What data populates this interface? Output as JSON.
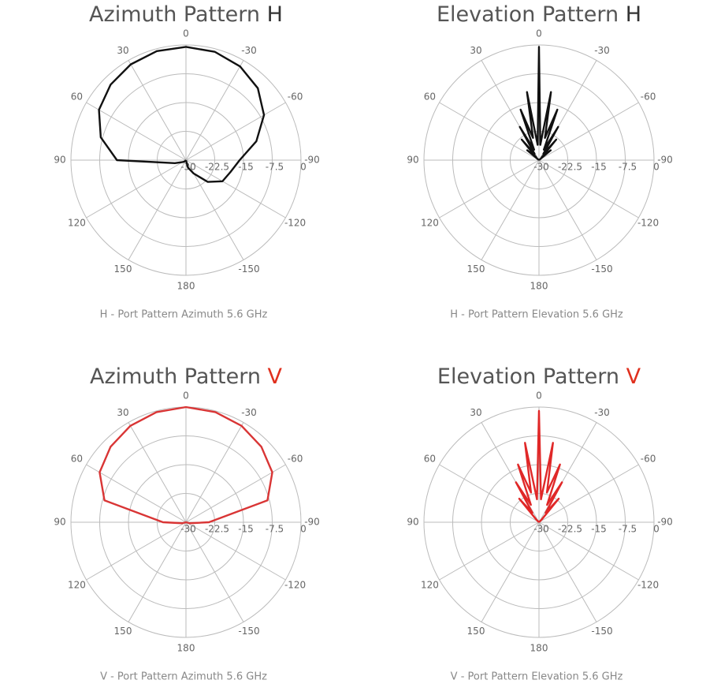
{
  "chart_data": [
    {
      "type": "polar",
      "title": "Azimuth Pattern",
      "title_highlight": "H",
      "highlight_color": "#333333",
      "caption": "H - Port Pattern Azimuth 5.6 GHz",
      "thetaticks": [
        0,
        -30,
        -60,
        -90,
        -120,
        -150,
        180,
        150,
        120,
        90,
        60,
        30
      ],
      "rlim": [
        -30,
        0
      ],
      "rticks": [
        -30,
        -22.5,
        -15,
        -7.5,
        0
      ],
      "color": "#111111",
      "x": [
        -180,
        -165,
        -150,
        -135,
        -120,
        -105,
        -90,
        -75,
        -60,
        -45,
        -30,
        -15,
        0,
        15,
        30,
        45,
        60,
        75,
        90,
        105,
        120,
        135,
        150,
        165,
        180
      ],
      "values": [
        -30,
        -28,
        -26,
        -22,
        -19,
        -18,
        -16,
        -11,
        -6.5,
        -3.5,
        -1.8,
        -0.8,
        -0.5,
        -0.6,
        -1.2,
        -2.2,
        -3.8,
        -7,
        -12,
        -27,
        -29,
        -29.5,
        -30,
        -30,
        -30
      ]
    },
    {
      "type": "polar",
      "title": "Elevation Pattern",
      "title_highlight": "H",
      "highlight_color": "#333333",
      "caption": "H - Port Pattern Elevation 5.6 GHz",
      "thetaticks": [
        0,
        -30,
        -60,
        -90,
        -120,
        -150,
        180,
        150,
        120,
        90,
        60,
        30
      ],
      "rlim": [
        -30,
        0
      ],
      "rticks": [
        -30,
        -22.5,
        -15,
        -7.5,
        0
      ],
      "color": "#111111",
      "x": [
        -90,
        -85,
        -80,
        -75,
        -70,
        -65,
        -60,
        -55,
        -50,
        -45,
        -40,
        -35,
        -30,
        -25,
        -20,
        -15,
        -10,
        -5,
        0,
        5,
        10,
        15,
        20,
        25,
        30,
        35,
        40,
        45,
        50,
        55,
        60,
        65,
        70,
        75,
        80,
        85,
        90
      ],
      "values": [
        -30,
        -30,
        -30,
        -30,
        -30,
        -30,
        -30,
        -30,
        -26,
        -29,
        -23,
        -28,
        -20,
        -27,
        -16,
        -24,
        -12,
        -26,
        -0.5,
        -26,
        -12,
        -24,
        -16,
        -27,
        -20,
        -28,
        -23,
        -29,
        -26,
        -30,
        -30,
        -30,
        -30,
        -30,
        -30,
        -30,
        -30
      ]
    },
    {
      "type": "polar",
      "title": "Azimuth Pattern",
      "title_highlight": "V",
      "highlight_color": "#e0301e",
      "caption": "V - Port Pattern Azimuth 5.6 GHz",
      "thetaticks": [
        0,
        -30,
        -60,
        -90,
        -120,
        -150,
        180,
        150,
        120,
        90,
        60,
        30
      ],
      "rlim": [
        -30,
        0
      ],
      "rticks": [
        -30,
        -22.5,
        -15,
        -7.5,
        0
      ],
      "color": "#d93535",
      "x": [
        -180,
        -165,
        -150,
        -135,
        -120,
        -105,
        -90,
        -75,
        -60,
        -45,
        -30,
        -15,
        0,
        15,
        30,
        45,
        60,
        75,
        90,
        105,
        120,
        135,
        150,
        165,
        180
      ],
      "values": [
        -30,
        -30,
        -30,
        -30,
        -30,
        -29,
        -24,
        -8,
        -4,
        -2.2,
        -1,
        -0.3,
        0,
        -0.3,
        -1,
        -2.2,
        -4,
        -8,
        -24,
        -29,
        -30,
        -30,
        -30,
        -30,
        -30
      ]
    },
    {
      "type": "polar",
      "title": "Elevation Pattern",
      "title_highlight": "V",
      "highlight_color": "#e0301e",
      "caption": "V - Port Pattern Elevation 5.6 GHz",
      "thetaticks": [
        0,
        -30,
        -60,
        -90,
        -120,
        -150,
        180,
        150,
        120,
        90,
        60,
        30
      ],
      "rlim": [
        -30,
        0
      ],
      "rticks": [
        -30,
        -22.5,
        -15,
        -7.5,
        0
      ],
      "color": "#e02828",
      "x": [
        -90,
        -85,
        -80,
        -75,
        -70,
        -65,
        -60,
        -55,
        -50,
        -45,
        -40,
        -35,
        -30,
        -25,
        -20,
        -15,
        -10,
        -5,
        0,
        5,
        10,
        15,
        20,
        25,
        30,
        35,
        40,
        45,
        50,
        55,
        60,
        65,
        70,
        75,
        80,
        85,
        90
      ],
      "values": [
        -30,
        -30,
        -30,
        -30,
        -30,
        -30,
        -30,
        -30,
        -30,
        -29,
        -22,
        -27,
        -18,
        -25,
        -14,
        -22,
        -9,
        -24,
        -1,
        -24,
        -9,
        -22,
        -14,
        -25,
        -18,
        -27,
        -22,
        -29,
        -30,
        -30,
        -30,
        -30,
        -30,
        -30,
        -30,
        -30,
        -30
      ]
    }
  ]
}
